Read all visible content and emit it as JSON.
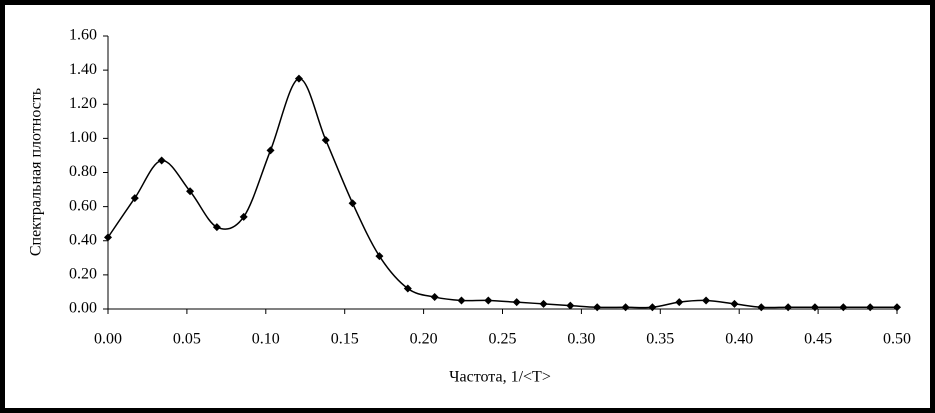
{
  "chart_data": {
    "type": "line",
    "x_label": "Частота, 1/<T>",
    "y_label": "Спектральная плотность",
    "x": [
      0.0,
      0.017,
      0.034,
      0.052,
      0.069,
      0.086,
      0.103,
      0.121,
      0.138,
      0.155,
      0.172,
      0.19,
      0.207,
      0.224,
      0.241,
      0.259,
      0.276,
      0.293,
      0.31,
      0.328,
      0.345,
      0.362,
      0.379,
      0.397,
      0.414,
      0.431,
      0.448,
      0.466,
      0.483,
      0.5
    ],
    "series": [
      {
        "color": "#000000",
        "values": [
          0.42,
          0.65,
          0.87,
          0.69,
          0.48,
          0.54,
          0.93,
          1.35,
          0.99,
          0.62,
          0.31,
          0.12,
          0.07,
          0.05,
          0.05,
          0.04,
          0.03,
          0.02,
          0.01,
          0.01,
          0.01,
          0.04,
          0.05,
          0.03,
          0.01,
          0.01,
          0.01,
          0.01,
          0.01,
          0.01
        ]
      }
    ],
    "xlim": [
      0,
      0.5
    ],
    "xticks": [
      {
        "value": 0,
        "label": "0.00"
      },
      {
        "value": 0.05,
        "label": "0.05"
      },
      {
        "value": 0.1,
        "label": "0.10"
      },
      {
        "value": 0.15,
        "label": "0.15"
      },
      {
        "value": 0.2,
        "label": "0.20"
      },
      {
        "value": 0.25,
        "label": "0.25"
      },
      {
        "value": 0.3,
        "label": "0.30"
      },
      {
        "value": 0.35,
        "label": "0.35"
      },
      {
        "value": 0.4,
        "label": "0.40"
      },
      {
        "value": 0.45,
        "label": "0.45"
      },
      {
        "value": 0.5,
        "label": "0.50"
      }
    ],
    "ylim": [
      0,
      1.6
    ],
    "yticks": [
      {
        "value": 0,
        "label": "0.00"
      },
      {
        "value": 0.2,
        "label": "0.20"
      },
      {
        "value": 0.4,
        "label": "0.40"
      },
      {
        "value": 0.6,
        "label": "0.60"
      },
      {
        "value": 0.8,
        "label": "0.80"
      },
      {
        "value": 1.0,
        "label": "1.00"
      },
      {
        "value": 1.2,
        "label": "1.20"
      },
      {
        "value": 1.4,
        "label": "1.40"
      },
      {
        "value": 1.6,
        "label": "1.60"
      }
    ],
    "grid": false,
    "smooth": true
  }
}
